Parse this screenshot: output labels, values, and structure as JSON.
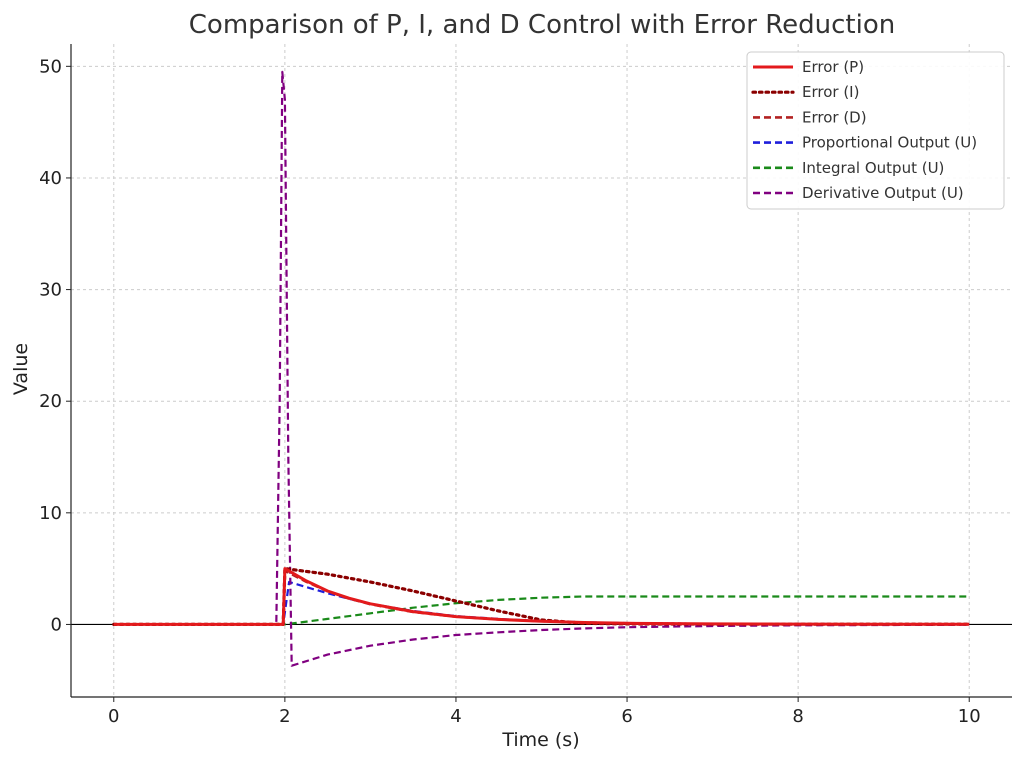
{
  "chart_data": {
    "type": "line",
    "title": "Comparison of P, I, and D Control with Error Reduction",
    "xlabel": "Time (s)",
    "ylabel": "Value",
    "xlim": [
      -0.5,
      10.5
    ],
    "ylim": [
      -6.5,
      52
    ],
    "xticks": [
      0,
      2,
      4,
      6,
      8,
      10
    ],
    "yticks": [
      0,
      10,
      20,
      30,
      40,
      50
    ],
    "grid": true,
    "legend_position": "top-right",
    "series": [
      {
        "name": "Error (P)",
        "color": "#e31a1c",
        "style": "solid",
        "x": [
          0,
          1.9,
          1.98,
          2.0,
          2.25,
          2.5,
          2.75,
          3.0,
          3.5,
          4.0,
          4.5,
          5.0,
          5.5,
          6.0,
          7.0,
          8.0,
          9.0,
          10.0
        ],
        "y": [
          0,
          0,
          0,
          5.0,
          3.9,
          3.0,
          2.35,
          1.85,
          1.15,
          0.7,
          0.45,
          0.28,
          0.17,
          0.1,
          0.05,
          0.03,
          0.02,
          0.02
        ]
      },
      {
        "name": "Error (I)",
        "color": "#8b0000",
        "style": "dotted",
        "x": [
          0,
          1.9,
          1.98,
          2.0,
          2.5,
          3.0,
          3.5,
          4.0,
          4.5,
          5.0,
          5.5,
          6.0,
          7.0,
          8.0,
          9.0,
          10.0
        ],
        "y": [
          0,
          0,
          0,
          5.0,
          4.5,
          3.8,
          3.0,
          2.1,
          1.2,
          0.4,
          0.1,
          0.05,
          0.03,
          0.02,
          0.02,
          0.02
        ]
      },
      {
        "name": "Error (D)",
        "color": "#b22222",
        "style": "dashed",
        "x": [
          0,
          1.9,
          1.98,
          2.0,
          2.25,
          2.5,
          2.75,
          3.0,
          3.5,
          4.0,
          4.5,
          5.0,
          5.5,
          6.0,
          7.0,
          8.0,
          9.0,
          10.0
        ],
        "y": [
          0,
          0,
          0,
          4.8,
          3.8,
          2.95,
          2.3,
          1.8,
          1.1,
          0.68,
          0.43,
          0.27,
          0.16,
          0.1,
          0.05,
          0.03,
          0.02,
          0.02
        ]
      },
      {
        "name": "Proportional Output (U)",
        "color": "#1f1fdb",
        "style": "dashed",
        "x": [
          0,
          1.9,
          1.98,
          2.05,
          2.25,
          2.5,
          2.75,
          3.0,
          3.5,
          4.0,
          4.5,
          5.0,
          5.5,
          6.0,
          7.0,
          8.0,
          9.0,
          10.0
        ],
        "y": [
          0,
          0,
          0,
          3.8,
          3.35,
          2.8,
          2.3,
          1.85,
          1.2,
          0.75,
          0.5,
          0.3,
          0.2,
          0.12,
          0.06,
          0.04,
          0.03,
          0.03
        ]
      },
      {
        "name": "Integral Output (U)",
        "color": "#1a8a1a",
        "style": "dashed",
        "x": [
          0,
          2.0,
          2.5,
          3.0,
          3.5,
          4.0,
          4.5,
          5.0,
          5.5,
          6.0,
          7.0,
          8.0,
          9.0,
          10.0
        ],
        "y": [
          0,
          0,
          0.5,
          1.0,
          1.5,
          1.9,
          2.2,
          2.4,
          2.5,
          2.5,
          2.5,
          2.5,
          2.5,
          2.5
        ]
      },
      {
        "name": "Derivative Output (U)",
        "color": "#800080",
        "style": "dashed",
        "x": [
          0,
          1.9,
          1.94,
          1.97,
          2.0,
          2.04,
          2.08,
          2.5,
          3.0,
          3.5,
          4.0,
          4.5,
          5.0,
          5.5,
          6.0,
          7.0,
          8.0,
          9.0,
          10.0
        ],
        "y": [
          0,
          0,
          20,
          49.5,
          47,
          15,
          -3.7,
          -2.7,
          -1.9,
          -1.35,
          -0.95,
          -0.7,
          -0.5,
          -0.35,
          -0.25,
          -0.14,
          -0.08,
          -0.05,
          -0.03
        ]
      }
    ]
  }
}
